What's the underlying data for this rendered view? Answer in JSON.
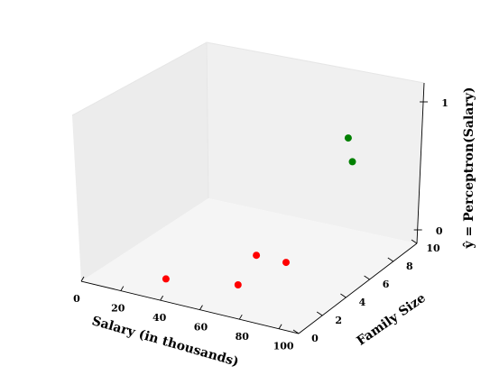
{
  "chart_data": {
    "type": "scatter",
    "projection": "3d",
    "xlabel": "Salary (in thousands)",
    "ylabel": "Family Size",
    "zlabel": "ŷ = Perceptron(Salary)",
    "xlim": [
      0,
      110
    ],
    "ylim": [
      0,
      10
    ],
    "zlim": [
      0,
      1
    ],
    "xticks": [
      "0",
      "20",
      "40",
      "60",
      "80",
      "100"
    ],
    "yticks": [
      "0",
      "2",
      "4",
      "6",
      "8",
      "10"
    ],
    "zticks": [
      "0",
      "1"
    ],
    "grid": false,
    "series": [
      {
        "color": "#ff0000",
        "points": [
          {
            "x": 30,
            "y": 2,
            "z": 0
          },
          {
            "x": 60,
            "y": 3,
            "z": 0
          },
          {
            "x": 50,
            "y": 6,
            "z": 0
          },
          {
            "x": 65,
            "y": 6,
            "z": 0
          }
        ]
      },
      {
        "color": "#008000",
        "points": [
          {
            "x": 90,
            "y": 7,
            "z": 1
          },
          {
            "x": 105,
            "y": 5,
            "z": 1
          }
        ]
      }
    ]
  }
}
